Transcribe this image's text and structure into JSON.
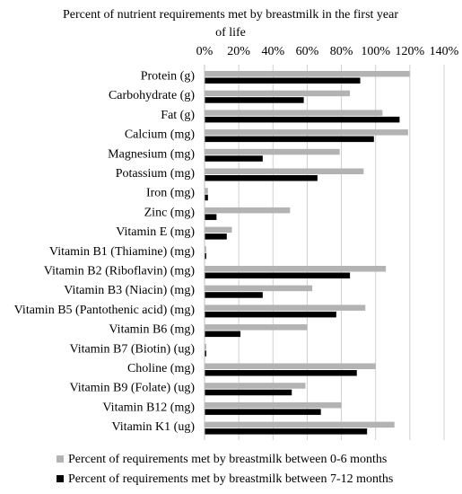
{
  "chart_data": {
    "type": "bar",
    "orientation": "horizontal",
    "title": "Percent of nutrient requirements met by breastmilk in the first year of life",
    "title_lines": [
      "Percent of nutrient requirements met by breastmilk in the first year",
      "of life"
    ],
    "xlabel": "",
    "ylabel": "",
    "xlim": [
      0,
      140
    ],
    "x_ticks": [
      "0%",
      "20%",
      "40%",
      "60%",
      "80%",
      "100%",
      "120%",
      "140%"
    ],
    "x_axis_position": "top",
    "grid": true,
    "legend_position": "bottom",
    "categories": [
      "Protein (g)",
      "Carbohydrate (g)",
      "Fat (g)",
      "Calcium (mg)",
      "Magnesium (mg)",
      "Potassium (mg)",
      "Iron (mg)",
      "Zinc (mg)",
      "Vitamin E (mg)",
      "Vitamin B1 (Thiamine) (mg)",
      "Vitamin B2 (Riboflavin) (mg)",
      "Vitamin B3 (Niacin) (mg)",
      "Vitamin B5 (Pantothenic acid) (mg)",
      "Vitamin B6 (mg)",
      "Vitamin B7 (Biotin) (ug)",
      "Choline (mg)",
      "Vitamin B9 (Folate) (ug)",
      "Vitamin B12 (mg)",
      "Vitamin K1 (ug)"
    ],
    "series": [
      {
        "name": "Percent of requirements met by breastmilk between 0-6 months",
        "color": "#b3b3b3",
        "values": [
          120,
          85,
          104,
          119,
          79,
          93,
          2,
          50,
          16,
          1,
          106,
          63,
          94,
          60,
          1,
          100,
          59,
          80,
          111
        ]
      },
      {
        "name": "Percent of requirements met by breastmilk between 7-12 months",
        "color": "#000000",
        "values": [
          91,
          58,
          114,
          99,
          34,
          66,
          2,
          7,
          13,
          1,
          85,
          34,
          77,
          21,
          1,
          89,
          51,
          68,
          95
        ]
      }
    ]
  }
}
